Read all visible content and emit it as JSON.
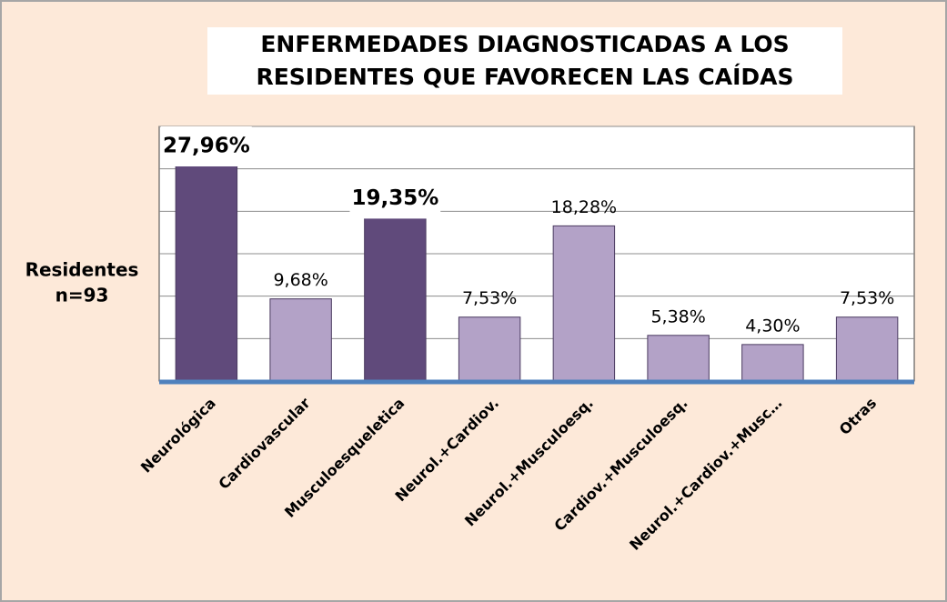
{
  "chart_data": {
    "type": "bar",
    "title": [
      "ENFERMEDADES DIAGNOSTICADAS A LOS",
      "RESIDENTES QUE FAVORECEN  LAS CAÍDAS"
    ],
    "y_label": [
      "Residentes",
      "n=93"
    ],
    "categories": [
      "Neurológica",
      "Cardiovascular",
      "Musculoesqueletica",
      "Neurol.+Cardiov.",
      "Neurol.+Musculoesq.",
      "Cardiov.+Musculoesq.",
      "Neurol.+Cardiov.+Musc…",
      "Otras"
    ],
    "values": [
      27.96,
      9.68,
      19.35,
      7.53,
      18.28,
      5.38,
      4.3,
      7.53
    ],
    "value_labels": [
      "27,96%",
      "9,68%",
      "19,35%",
      "7,53%",
      "18,28%",
      "5,38%",
      "4,30%",
      "7,53%"
    ],
    "colors": [
      "#604a7b",
      "#b3a2c7",
      "#604a7b",
      "#b3a2c7",
      "#b3a2c7",
      "#b3a2c7",
      "#b3a2c7",
      "#b3a2c7"
    ],
    "ylim": [
      0,
      30
    ],
    "yticks": [
      0,
      5,
      10,
      15,
      20,
      25,
      30
    ],
    "grid": true
  }
}
